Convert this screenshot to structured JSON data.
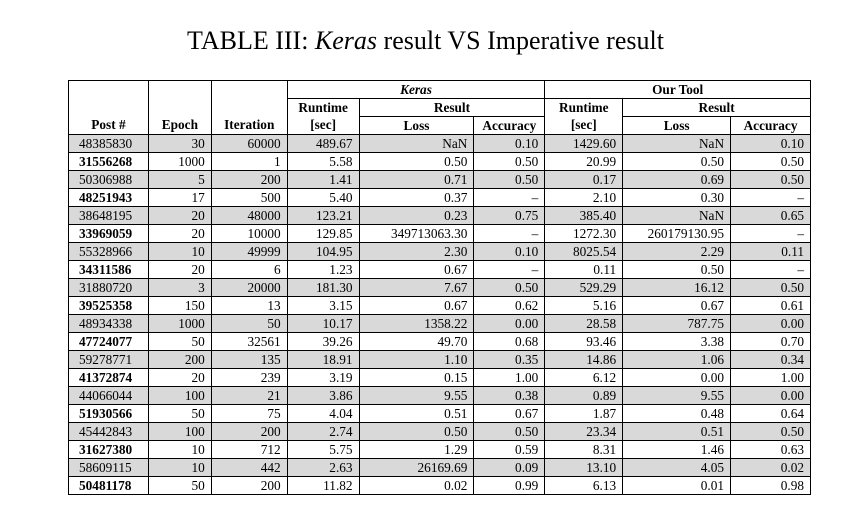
{
  "title": {
    "prefix": "TABLE III: ",
    "keras": "Keras",
    "suffix": " result VS Imperative result"
  },
  "headers": {
    "keras_group": "Keras",
    "tool_group": "Our Tool",
    "post": "Post #",
    "epoch": "Epoch",
    "iteration": "Iteration",
    "runtime": "Runtime",
    "runtime_unit": "[sec]",
    "result": "Result",
    "loss": "Loss",
    "accuracy": "Accuracy"
  },
  "rows": [
    [
      "48385830",
      "30",
      "60000",
      "489.67",
      "NaN",
      "0.10",
      "1429.60",
      "NaN",
      "0.10"
    ],
    [
      "31556268",
      "1000",
      "1",
      "5.58",
      "0.50",
      "0.50",
      "20.99",
      "0.50",
      "0.50"
    ],
    [
      "50306988",
      "5",
      "200",
      "1.41",
      "0.71",
      "0.50",
      "0.17",
      "0.69",
      "0.50"
    ],
    [
      "48251943",
      "17",
      "500",
      "5.40",
      "0.37",
      "–",
      "2.10",
      "0.30",
      "–"
    ],
    [
      "38648195",
      "20",
      "48000",
      "123.21",
      "0.23",
      "0.75",
      "385.40",
      "NaN",
      "0.65"
    ],
    [
      "33969059",
      "20",
      "10000",
      "129.85",
      "349713063.30",
      "–",
      "1272.30",
      "260179130.95",
      "–"
    ],
    [
      "55328966",
      "10",
      "49999",
      "104.95",
      "2.30",
      "0.10",
      "8025.54",
      "2.29",
      "0.11"
    ],
    [
      "34311586",
      "20",
      "6",
      "1.23",
      "0.67",
      "–",
      "0.11",
      "0.50",
      "–"
    ],
    [
      "31880720",
      "3",
      "20000",
      "181.30",
      "7.67",
      "0.50",
      "529.29",
      "16.12",
      "0.50"
    ],
    [
      "39525358",
      "150",
      "13",
      "3.15",
      "0.67",
      "0.62",
      "5.16",
      "0.67",
      "0.61"
    ],
    [
      "48934338",
      "1000",
      "50",
      "10.17",
      "1358.22",
      "0.00",
      "28.58",
      "787.75",
      "0.00"
    ],
    [
      "47724077",
      "50",
      "32561",
      "39.26",
      "49.70",
      "0.68",
      "93.46",
      "3.38",
      "0.70"
    ],
    [
      "59278771",
      "200",
      "135",
      "18.91",
      "1.10",
      "0.35",
      "14.86",
      "1.06",
      "0.34"
    ],
    [
      "41372874",
      "20",
      "239",
      "3.19",
      "0.15",
      "1.00",
      "6.12",
      "0.00",
      "1.00"
    ],
    [
      "44066044",
      "100",
      "21",
      "3.86",
      "9.55",
      "0.38",
      "0.89",
      "9.55",
      "0.00"
    ],
    [
      "51930566",
      "50",
      "75",
      "4.04",
      "0.51",
      "0.67",
      "1.87",
      "0.48",
      "0.64"
    ],
    [
      "45442843",
      "100",
      "200",
      "2.74",
      "0.50",
      "0.50",
      "23.34",
      "0.51",
      "0.50"
    ],
    [
      "31627380",
      "10",
      "712",
      "5.75",
      "1.29",
      "0.59",
      "8.31",
      "1.46",
      "0.63"
    ],
    [
      "58609115",
      "10",
      "442",
      "2.63",
      "26169.69",
      "0.09",
      "13.10",
      "4.05",
      "0.02"
    ],
    [
      "50481178",
      "50",
      "200",
      "11.82",
      "0.02",
      "0.99",
      "6.13",
      "0.01",
      "0.98"
    ]
  ]
}
